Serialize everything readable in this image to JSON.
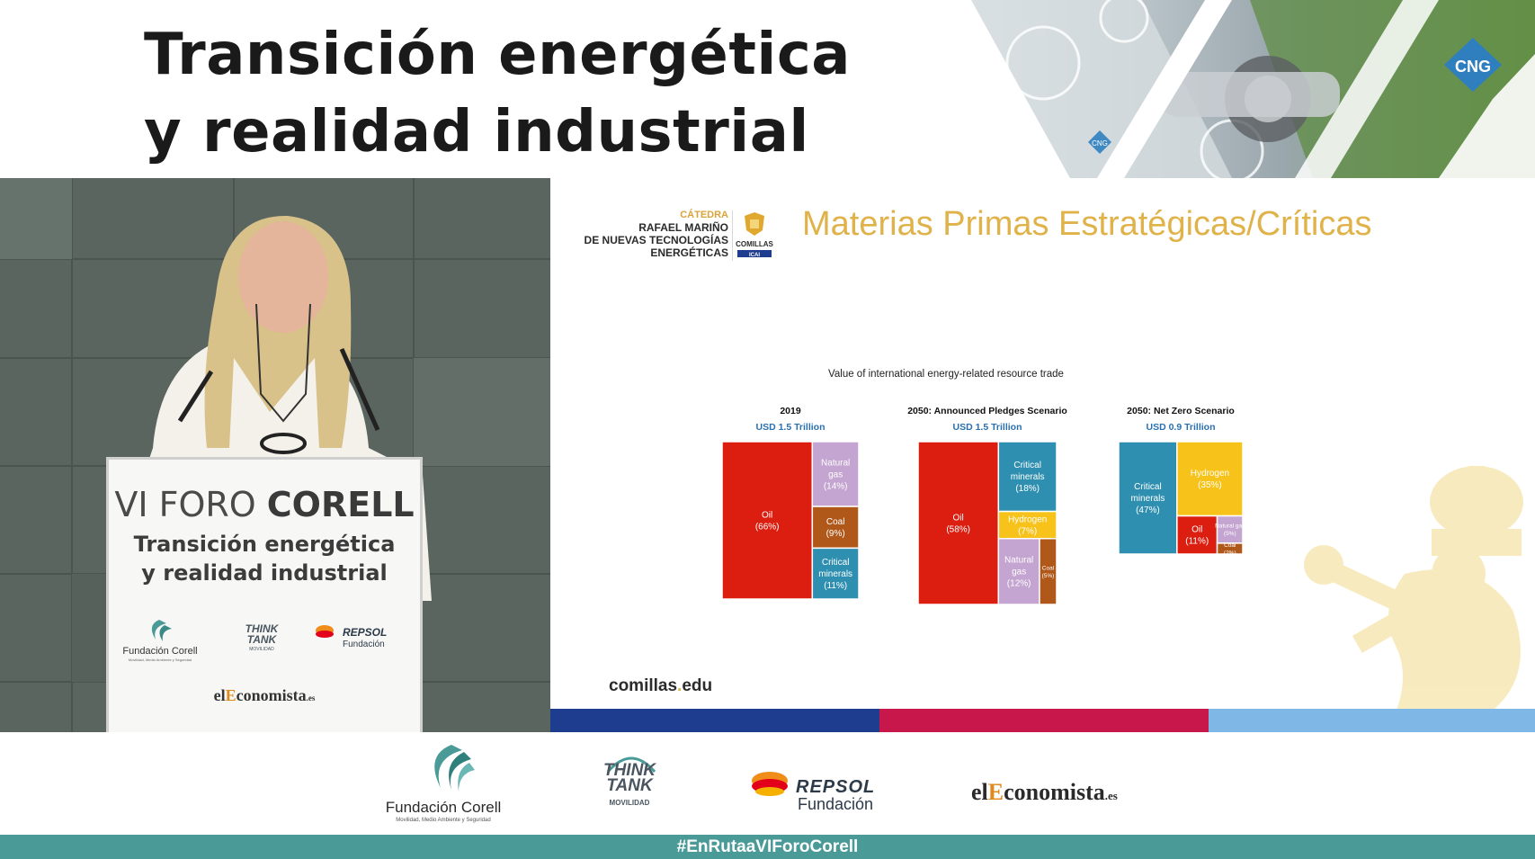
{
  "header": {
    "title_line1": "Transición energética",
    "title_line2": "y realidad industrial",
    "photo_badge_cng": "CNG",
    "photo_badge_cng_small": "CNG"
  },
  "podium": {
    "line1_prefix": "VI FORO ",
    "line1_bold": "CORELL",
    "line2a": "Transición energética",
    "line2b": "y realidad industrial",
    "logo_fundacion": "Fundación Corell",
    "logo_fundacion_sub": "Movilidad, Medio Ambiente y Seguridad",
    "logo_thinktank_1": "THINK",
    "logo_thinktank_2": "TANK",
    "logo_thinktank_3": "MOVILIDAD",
    "logo_repsol": "REPSOL",
    "logo_repsol_sub": "Fundación",
    "economista_pre": "el",
    "economista_e": "E",
    "economista_post": "conomista",
    "economista_es": ".es"
  },
  "slide": {
    "catedra_line1": "CÁTEDRA",
    "catedra_line2": "RAFAEL MARIÑO",
    "catedra_line3": "DE NUEVAS TECNOLOGÍAS",
    "catedra_line4": "ENERGÉTICAS",
    "crest_label": "COMILLAS",
    "crest_sub": "ICAI",
    "title": "Materias Primas Estratégicas/Críticas",
    "url_main": "comillas",
    "url_dot": ".",
    "url_tld": "edu",
    "stripe_colors": [
      "#1f3d8f",
      "#c8174a",
      "#7fb8e6"
    ]
  },
  "chart_data": {
    "type": "treemap",
    "title": "Value of international energy-related resource trade",
    "colors": {
      "Oil": "#dc1e10",
      "Natural gas": "#c4a4d0",
      "Coal": "#b0581a",
      "Critical minerals": "#2f8fb0",
      "Hydrogen": "#f7c21a"
    },
    "panels": [
      {
        "name": "2019",
        "total": "USD 1.5 Trillion",
        "items": [
          {
            "label": "Oil",
            "pct": 66
          },
          {
            "label": "Natural gas",
            "pct": 14
          },
          {
            "label": "Coal",
            "pct": 9
          },
          {
            "label": "Critical minerals",
            "pct": 11
          }
        ]
      },
      {
        "name": "2050: Announced Pledges Scenario",
        "total": "USD 1.5 Trillion",
        "items": [
          {
            "label": "Oil",
            "pct": 58
          },
          {
            "label": "Critical minerals",
            "pct": 18
          },
          {
            "label": "Hydrogen",
            "pct": 7
          },
          {
            "label": "Natural gas",
            "pct": 12
          },
          {
            "label": "Coal",
            "pct": 5
          }
        ]
      },
      {
        "name": "2050: Net Zero Scenario",
        "total": "USD 0.9 Trillion",
        "items": [
          {
            "label": "Critical minerals",
            "pct": 47
          },
          {
            "label": "Hydrogen",
            "pct": 35
          },
          {
            "label": "Oil",
            "pct": 11
          },
          {
            "label": "Natural gas",
            "pct": 5
          },
          {
            "label": "Coal",
            "pct": 2
          }
        ]
      }
    ]
  },
  "bottom_bar": {
    "fundacion": "Fundación Corell",
    "fundacion_sub": "Movilidad, Medio Ambiente y Seguridad",
    "thinktank_1": "THINK",
    "thinktank_2": "TANK",
    "thinktank_3": "MOVILIDAD",
    "repsol": "REPSOL",
    "repsol_sub": "Fundación",
    "economista_pre": "el",
    "economista_e": "E",
    "economista_post": "conomista",
    "economista_es": ".es",
    "hashtag": "#EnRutaaVIForoCorell"
  }
}
